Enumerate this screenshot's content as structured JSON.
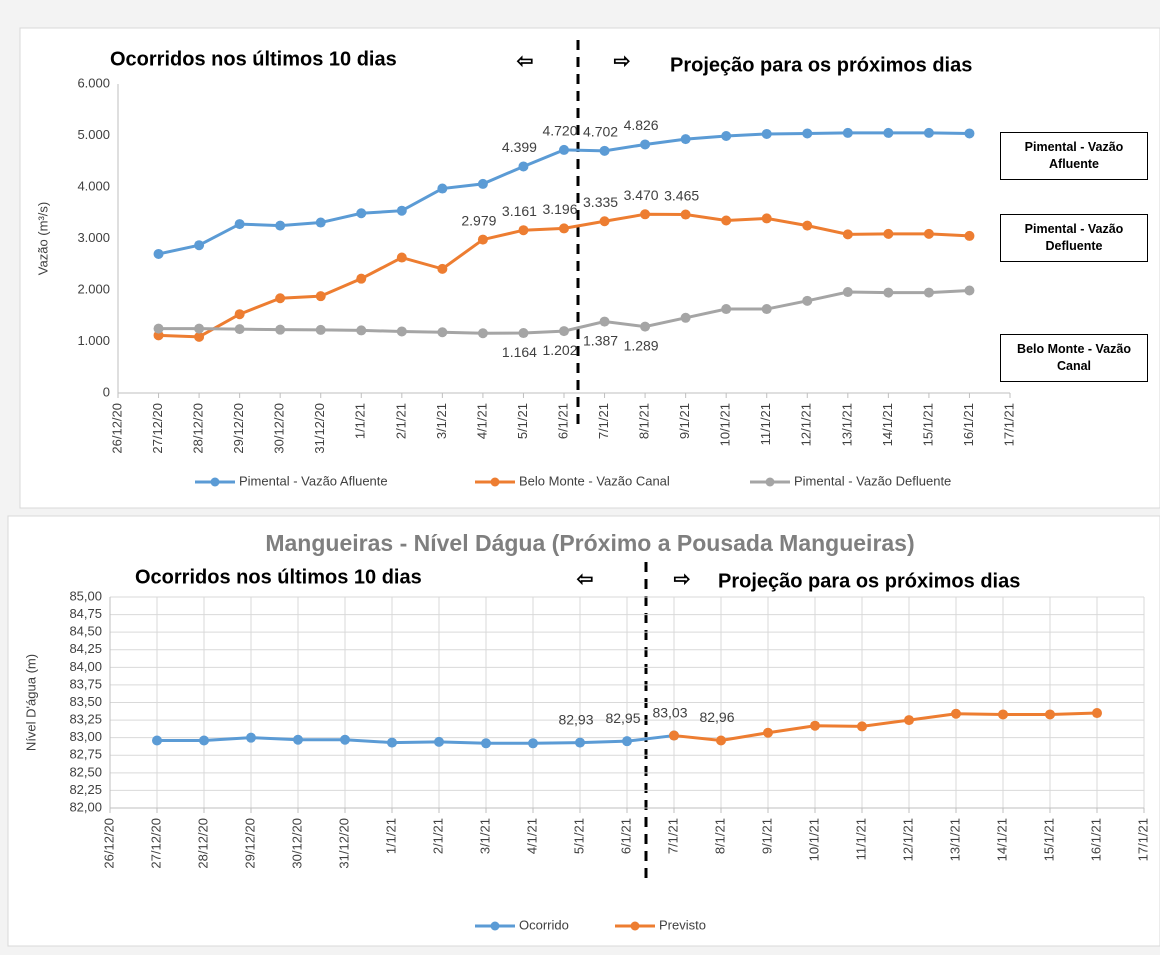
{
  "chart_data": [
    {
      "type": "line",
      "annotations": [
        "Ocorridos nos últimos 10 dias",
        "⇦",
        "⇨",
        "Projeção para os próximos dias"
      ],
      "y_label": "Vazão (m³/s)",
      "side_labels": [
        "Pimental - Vazão Afluente",
        "Pimental - Vazão Defluente",
        "Belo Monte - Vazão Canal"
      ],
      "categories": [
        "26/12/20",
        "27/12/20",
        "28/12/20",
        "29/12/20",
        "30/12/20",
        "31/12/20",
        "1/1/21",
        "2/1/21",
        "3/1/21",
        "4/1/21",
        "5/1/21",
        "6/1/21",
        "7/1/21",
        "8/1/21",
        "9/1/21",
        "10/1/21",
        "11/1/21",
        "12/1/21",
        "13/1/21",
        "14/1/21",
        "15/1/21",
        "16/1/21",
        "17/1/21"
      ],
      "series": [
        {
          "name": "Pimental - Vazão Afluente",
          "color": "#5b9bd5",
          "values": [
            null,
            2700,
            2870,
            3280,
            3250,
            3310,
            3490,
            3540,
            3970,
            4060,
            4399,
            4720,
            4702,
            4826,
            4930,
            4990,
            5030,
            5040,
            5050,
            5050,
            5050,
            5040,
            null
          ],
          "value_labels": [
            null,
            null,
            null,
            null,
            null,
            null,
            null,
            null,
            null,
            null,
            "4.399",
            "4.720",
            "4.702",
            "4.826",
            null,
            null,
            null,
            null,
            null,
            null,
            null,
            null,
            null
          ]
        },
        {
          "name": "Belo Monte - Vazão Canal",
          "color": "#ed7d31",
          "values": [
            null,
            1120,
            1090,
            1530,
            1840,
            1880,
            2220,
            2630,
            2410,
            2979,
            3161,
            3196,
            3335,
            3470,
            3465,
            3350,
            3390,
            3250,
            3080,
            3090,
            3090,
            3050,
            null
          ],
          "value_labels": [
            null,
            null,
            null,
            null,
            null,
            null,
            null,
            null,
            null,
            "2.979",
            "3.161",
            "3.196",
            "3.335",
            "3.470",
            "3.465",
            null,
            null,
            null,
            null,
            null,
            null,
            null,
            null
          ]
        },
        {
          "name": "Pimental - Vazão Defluente",
          "color": "#a5a5a5",
          "values": [
            null,
            1250,
            1250,
            1240,
            1230,
            1225,
            1215,
            1195,
            1180,
            1160,
            1164,
            1202,
            1387,
            1289,
            1460,
            1630,
            1630,
            1790,
            1960,
            1950,
            1950,
            1990,
            null
          ],
          "value_labels": [
            null,
            null,
            null,
            null,
            null,
            null,
            null,
            null,
            null,
            null,
            "1.164",
            "1.202",
            "1.387",
            "1.289",
            null,
            null,
            null,
            null,
            null,
            null,
            null,
            null,
            null
          ]
        }
      ],
      "ylim": [
        0,
        6000
      ],
      "yticks": [
        0,
        {
          "value": 1000,
          "label": "1.000"
        },
        {
          "value": 2000,
          "label": "2.000"
        },
        {
          "value": 3000,
          "label": "3.000"
        },
        {
          "value": 4000,
          "label": "4.000"
        },
        {
          "value": 5000,
          "label": "5.000"
        },
        {
          "value": 6000,
          "label": "6.000"
        }
      ],
      "grid": false
    },
    {
      "type": "line",
      "title": "Mangueiras - Nível Dágua  (Próximo a Pousada Mangueiras)",
      "annotations": [
        "Ocorridos nos últimos 10 dias",
        "⇦",
        "⇨",
        "Projeção para os próximos dias"
      ],
      "y_label": "Nível D'água (m)",
      "categories": [
        "26/12/20",
        "27/12/20",
        "28/12/20",
        "29/12/20",
        "30/12/20",
        "31/12/20",
        "1/1/21",
        "2/1/21",
        "3/1/21",
        "4/1/21",
        "5/1/21",
        "6/1/21",
        "7/1/21",
        "8/1/21",
        "9/1/21",
        "10/1/21",
        "11/1/21",
        "12/1/21",
        "13/1/21",
        "14/1/21",
        "15/1/21",
        "16/1/21",
        "17/1/21"
      ],
      "series": [
        {
          "name": "Ocorrido",
          "color": "#5b9bd5",
          "values": [
            null,
            82.96,
            82.96,
            83.0,
            82.97,
            82.97,
            82.93,
            82.94,
            82.92,
            82.92,
            82.93,
            82.95,
            83.03,
            null,
            null,
            null,
            null,
            null,
            null,
            null,
            null,
            null,
            null
          ],
          "value_labels": [
            null,
            null,
            null,
            null,
            null,
            null,
            null,
            null,
            null,
            null,
            "82,93",
            "82,95",
            null,
            null,
            null,
            null,
            null,
            null,
            null,
            null,
            null,
            null,
            null
          ]
        },
        {
          "name": "Previsto",
          "color": "#ed7d31",
          "values": [
            null,
            null,
            null,
            null,
            null,
            null,
            null,
            null,
            null,
            null,
            null,
            null,
            83.03,
            82.96,
            83.07,
            83.17,
            83.16,
            83.25,
            83.34,
            83.33,
            83.33,
            83.35,
            null
          ],
          "value_labels": [
            null,
            null,
            null,
            null,
            null,
            null,
            null,
            null,
            null,
            null,
            null,
            null,
            "83,03",
            "82,96",
            null,
            null,
            null,
            null,
            null,
            null,
            null,
            null,
            null
          ]
        }
      ],
      "ylim": [
        82,
        85
      ],
      "yticks": [
        {
          "value": 82,
          "label": "82,00"
        },
        {
          "value": 82.25,
          "label": "82,25"
        },
        {
          "value": 82.5,
          "label": "82,50"
        },
        {
          "value": 82.75,
          "label": "82,75"
        },
        {
          "value": 83,
          "label": "83,00"
        },
        {
          "value": 83.25,
          "label": "83,25"
        },
        {
          "value": 83.5,
          "label": "83,50"
        },
        {
          "value": 83.75,
          "label": "83,75"
        },
        {
          "value": 84,
          "label": "84,00"
        },
        {
          "value": 84.25,
          "label": "84,25"
        },
        {
          "value": 84.5,
          "label": "84,50"
        },
        {
          "value": 84.75,
          "label": "84,75"
        },
        {
          "value": 85,
          "label": "85,00"
        }
      ],
      "grid": true
    }
  ]
}
